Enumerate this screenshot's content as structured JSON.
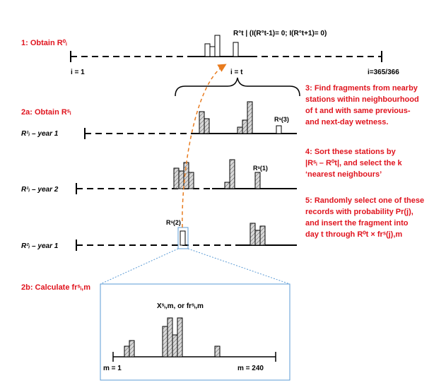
{
  "steps": {
    "s1": "1: Obtain R⁰ᵢ",
    "s2a": "2a: Obtain Rˢᵢ",
    "s2b": "2b: Calculate frˢᵢ,m",
    "s3": [
      "3: Find fragments from nearby",
      "stations within neighbourhood",
      "of t and with same previous-",
      "and next-day wetness."
    ],
    "s4": [
      "4: Sort these stations by",
      "|Rˢᵢ – R⁰t|, and select the k",
      "‘nearest neighbours’"
    ],
    "s5": [
      "5: Randomly  select one of these",
      "records with probability  Pr(j),",
      "and insert the fragment into",
      "day t through R⁰t ×  frˢ(j),m"
    ]
  },
  "top_axis": {
    "condition": "R°t | (I(R°t-1)= 0;  I(R°t+1)= 0)",
    "start": "i = 1",
    "mid": "i = t",
    "end": "i=365/366"
  },
  "rows": [
    {
      "label": "R¹ᵢ – year 1",
      "tag": "Rˢ(3)"
    },
    {
      "label": "R¹ᵢ – year 2",
      "tag": "Rˢ(1)"
    },
    {
      "label": "R²ᵢ – year 1",
      "tag": "Rˢ(2)"
    }
  ],
  "zoom": {
    "formula": "Xˢᵢ,m, or frˢᵢ,m",
    "start": "m = 1",
    "end": "m = 240"
  },
  "colors": {
    "accent": "#e0141e",
    "arrow": "#e87b1e",
    "zoom": "#5b9bd5"
  }
}
